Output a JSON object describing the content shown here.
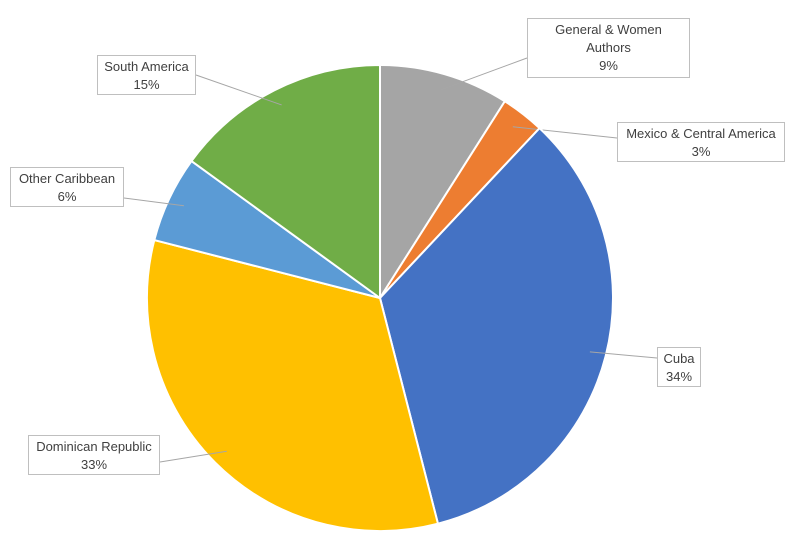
{
  "chart_data": {
    "type": "pie",
    "categories": [
      "General & Women Authors",
      "Mexico & Central America",
      "Cuba",
      "Dominican Republic",
      "Other Caribbean",
      "South America"
    ],
    "values": [
      9,
      3,
      34,
      33,
      6,
      15
    ],
    "value_labels": [
      "9%",
      "3%",
      "34%",
      "33%",
      "6%",
      "15%"
    ],
    "colors": [
      "#a5a5a5",
      "#ed7d31",
      "#4472c4",
      "#ffc000",
      "#5b9bd5",
      "#70ad47"
    ]
  }
}
